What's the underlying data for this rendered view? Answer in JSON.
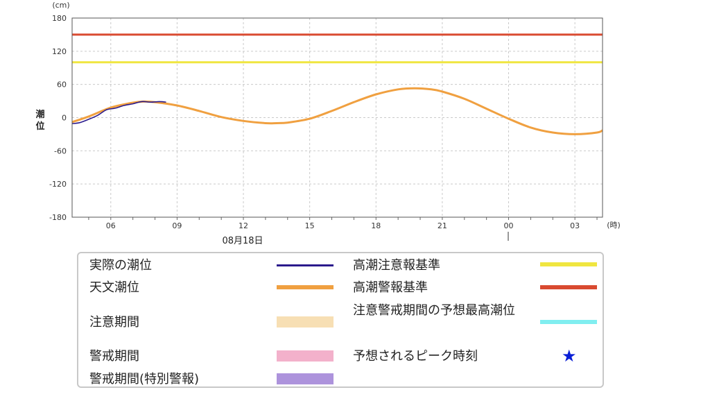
{
  "chart_data": {
    "type": "line",
    "unit_label": "(cm)",
    "hour_unit_label": "(時)",
    "ylabel": "潮位",
    "ylim": [
      -180,
      180
    ],
    "yticks": [
      "180",
      "120",
      "60",
      "0",
      "-60",
      "-120",
      "-180"
    ],
    "ytick_values": [
      180,
      120,
      60,
      0,
      -60,
      -120,
      -180
    ],
    "x_range_hours": [
      4.25,
      28.25
    ],
    "xticks": [
      {
        "label": "06",
        "hour": 6
      },
      {
        "label": "09",
        "hour": 9
      },
      {
        "label": "12",
        "hour": 12
      },
      {
        "label": "15",
        "hour": 15
      },
      {
        "label": "18",
        "hour": 18
      },
      {
        "label": "21",
        "hour": 21
      },
      {
        "label": "00",
        "hour": 24
      },
      {
        "label": "03",
        "hour": 27
      }
    ],
    "date_label": "08月18日",
    "grid": true,
    "thresholds": [
      {
        "name": "高潮警報基準",
        "value": 150,
        "color": "#d94a30"
      },
      {
        "name": "高潮注意報基準",
        "value": 100,
        "color": "#f0e640"
      }
    ],
    "series": [
      {
        "name": "天文潮位",
        "color": "#f0a040",
        "x": [
          4.25,
          5.0,
          6.0,
          7.0,
          7.5,
          8.0,
          9.0,
          10.0,
          11.0,
          12.0,
          13.0,
          13.5,
          14.0,
          15.0,
          16.0,
          17.0,
          18.0,
          19.0,
          19.75,
          20.5,
          21.0,
          22.0,
          23.0,
          24.0,
          25.0,
          26.0,
          27.0,
          28.0,
          28.25
        ],
        "y": [
          -8,
          2,
          18,
          27,
          29,
          28,
          22,
          12,
          1,
          -6,
          -10,
          -10,
          -9,
          -2,
          12,
          28,
          42,
          51,
          53,
          51,
          47,
          34,
          16,
          -2,
          -18,
          -27,
          -30,
          -27,
          -23
        ]
      },
      {
        "name": "実際の潮位",
        "color": "#2a1a8c",
        "x": [
          4.25,
          4.6,
          5.0,
          5.4,
          5.8,
          6.2,
          6.6,
          7.0,
          7.4,
          7.8,
          8.2,
          8.5
        ],
        "y": [
          -11,
          -9,
          -3,
          4,
          14,
          17,
          22,
          25,
          29,
          28,
          29,
          28
        ]
      }
    ]
  },
  "legend": {
    "left": [
      {
        "label": "実際の潮位",
        "swatch": "line",
        "color": "#2a1a8c"
      },
      {
        "label": "天文潮位",
        "swatch": "line-thick",
        "color": "#f0a040"
      },
      {
        "label": "注意期間",
        "swatch": "box",
        "color": "#f7dfb4"
      },
      {
        "label": "警戒期間",
        "swatch": "box",
        "color": "#f3b1cb"
      },
      {
        "label": "警戒期間(特別警報)",
        "swatch": "box",
        "color": "#ad93dc"
      }
    ],
    "right": [
      {
        "label": "高潮注意報基準",
        "swatch": "line-thick",
        "color": "#f0e640"
      },
      {
        "label": "高潮警報基準",
        "swatch": "line-thick",
        "color": "#d94a30"
      },
      {
        "label": "注意警戒期間の予想最高潮位",
        "swatch": "line-thick",
        "color": "#80eef0"
      },
      {
        "label": "予想されるピーク時刻",
        "swatch": "star",
        "color": "#0a1fd6"
      }
    ]
  }
}
